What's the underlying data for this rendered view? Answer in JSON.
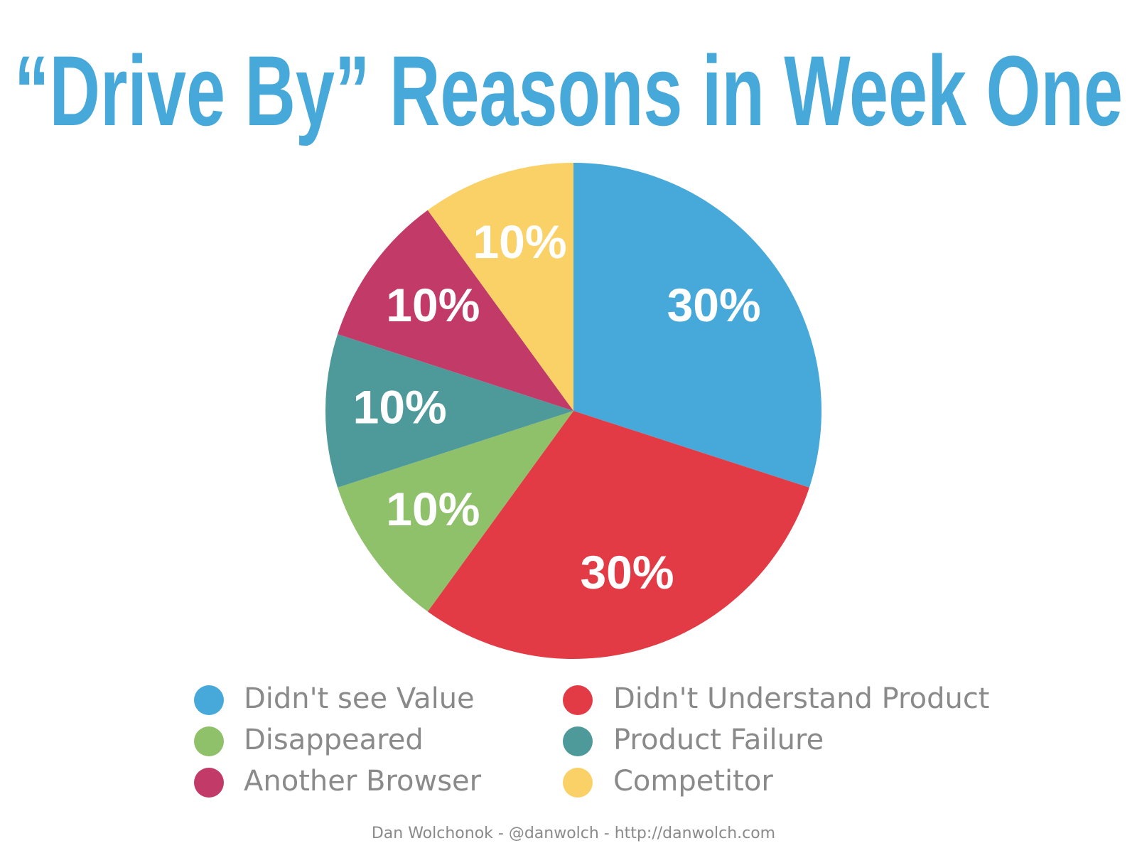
{
  "chart_data": {
    "type": "pie",
    "title": "“Drive By” Reasons in Week One",
    "categories": [
      "Didn't see Value",
      "Didn't Understand Product",
      "Disappeared",
      "Product Failure",
      "Another Browser",
      "Competitor"
    ],
    "values": [
      30,
      30,
      10,
      10,
      10,
      10
    ],
    "value_labels": [
      "30%",
      "30%",
      "10%",
      "10%",
      "10%",
      "10%"
    ],
    "colors": [
      "#47a8da",
      "#e23b45",
      "#8fc06a",
      "#4e9a9a",
      "#c13a68",
      "#f9d167"
    ],
    "legend": "bottom",
    "footer": "Dan Wolchonok - @danwolch - http://danwolch.com"
  }
}
